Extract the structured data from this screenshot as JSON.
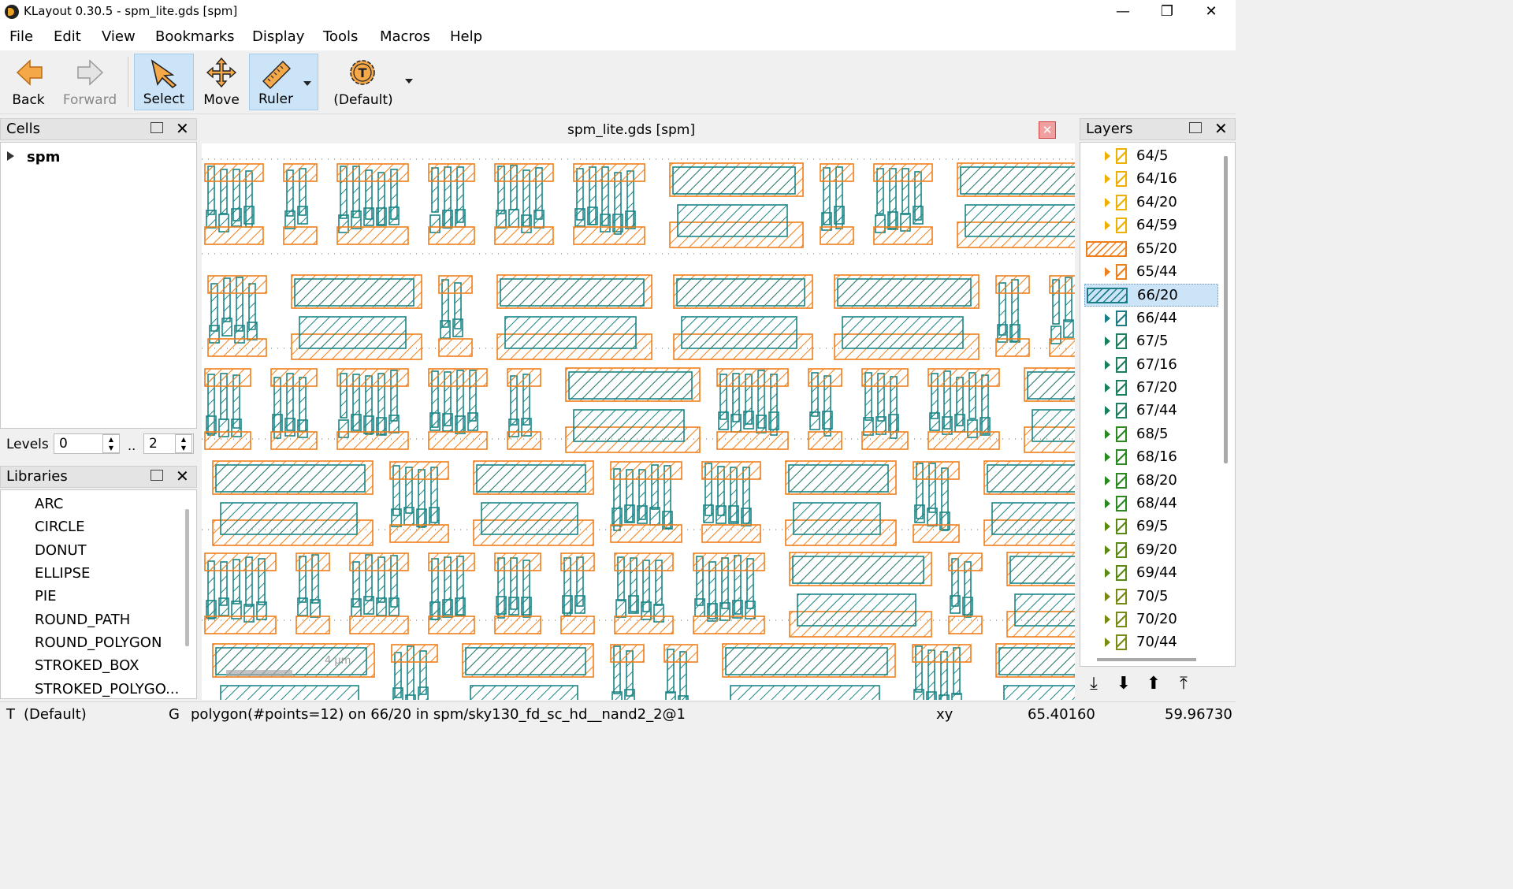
{
  "window": {
    "title": "KLayout 0.30.5 - spm_lite.gds [spm]",
    "minimize": "—",
    "maximize": "❐",
    "close": "✕"
  },
  "menu": [
    "File",
    "Edit",
    "View",
    "Bookmarks",
    "Display",
    "Tools",
    "Macros",
    "Help"
  ],
  "toolbar": {
    "back": "Back",
    "forward": "Forward",
    "select": "Select",
    "move": "Move",
    "ruler": "Ruler",
    "default": "(Default)"
  },
  "cells_panel": {
    "title": "Cells",
    "tree": [
      {
        "label": "spm"
      }
    ]
  },
  "levels": {
    "label": "Levels",
    "from": "0",
    "sep": "..",
    "to": "2"
  },
  "libraries_panel": {
    "title": "Libraries",
    "items": [
      "ARC",
      "CIRCLE",
      "DONUT",
      "ELLIPSE",
      "PIE",
      "ROUND_PATH",
      "ROUND_POLYGON",
      "STROKED_BOX",
      "STROKED_POLYGO..."
    ]
  },
  "canvas": {
    "title": "spm_lite.gds [spm]",
    "scale_label": "4 µm"
  },
  "layers_panel": {
    "title": "Layers",
    "items": [
      {
        "name": "64/5",
        "color": "#f0b000",
        "selected": false
      },
      {
        "name": "64/16",
        "color": "#f0b000",
        "selected": false
      },
      {
        "name": "64/20",
        "color": "#f0b000",
        "selected": false
      },
      {
        "name": "64/59",
        "color": "#f0b000",
        "selected": false
      },
      {
        "name": "65/20",
        "color": "#ef7f1a",
        "selected": false
      },
      {
        "name": "65/44",
        "color": "#ef7f1a",
        "selected": false
      },
      {
        "name": "66/20",
        "color": "#1a7d88",
        "selected": true
      },
      {
        "name": "66/44",
        "color": "#1a7d88",
        "selected": false
      },
      {
        "name": "67/5",
        "color": "#1a8060",
        "selected": false
      },
      {
        "name": "67/16",
        "color": "#1a8060",
        "selected": false
      },
      {
        "name": "67/20",
        "color": "#1a8060",
        "selected": false
      },
      {
        "name": "67/44",
        "color": "#1a8060",
        "selected": false
      },
      {
        "name": "68/5",
        "color": "#2a8a20",
        "selected": false
      },
      {
        "name": "68/16",
        "color": "#2a8a20",
        "selected": false
      },
      {
        "name": "68/20",
        "color": "#2a8a20",
        "selected": false
      },
      {
        "name": "68/44",
        "color": "#2a8a20",
        "selected": false
      },
      {
        "name": "69/5",
        "color": "#5a8a10",
        "selected": false
      },
      {
        "name": "69/20",
        "color": "#5a8a10",
        "selected": false
      },
      {
        "name": "69/44",
        "color": "#5a8a10",
        "selected": false
      },
      {
        "name": "70/5",
        "color": "#7a8a10",
        "selected": false
      },
      {
        "name": "70/20",
        "color": "#7a8a10",
        "selected": false
      },
      {
        "name": "70/44",
        "color": "#7a8a10",
        "selected": false
      }
    ]
  },
  "statusbar": {
    "mode_t": "T",
    "mode_default": "(Default)",
    "mode_g": "G",
    "message": "polygon(#points=12) on 66/20 in spm/sky130_fd_sc_hd__nand2_2@1",
    "coord_label": "xy",
    "x": "65.40160",
    "y": "59.96730"
  },
  "colors": {
    "orange": "#f07f1a",
    "teal": "#1a8585",
    "selection": "#cce4f7"
  }
}
